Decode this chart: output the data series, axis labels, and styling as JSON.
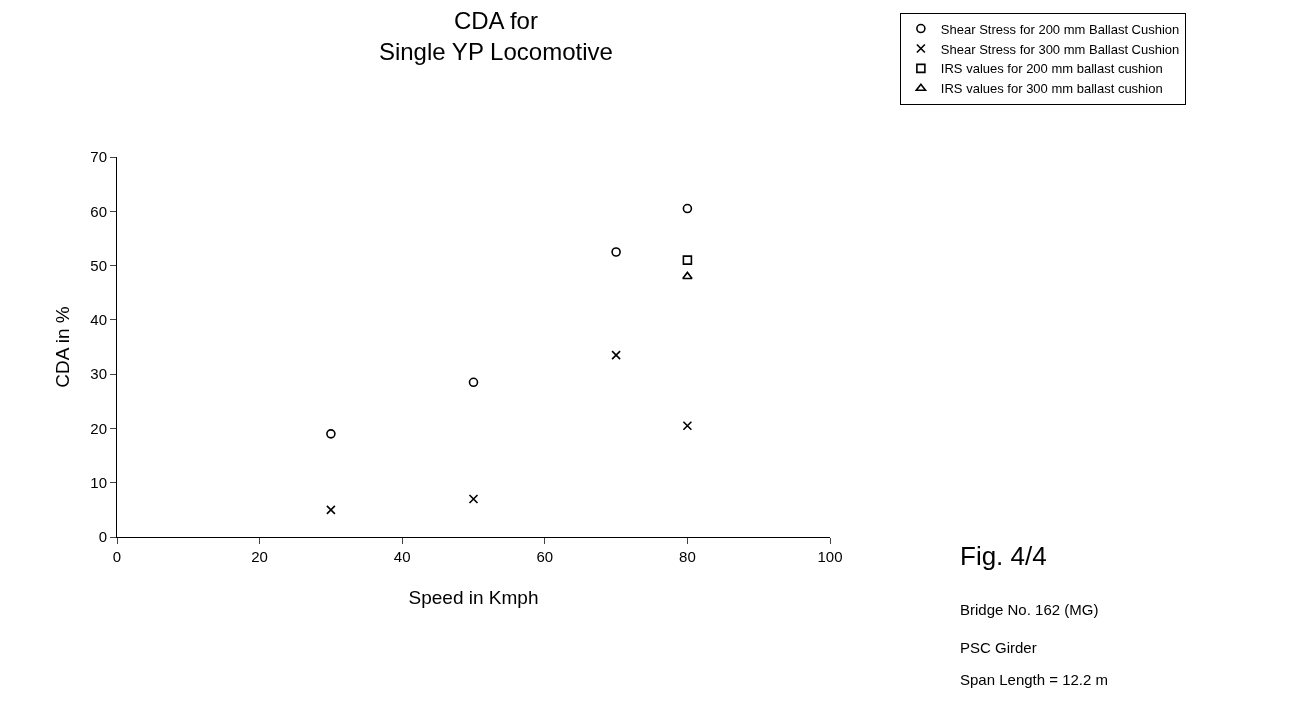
{
  "chart_data": {
    "type": "scatter",
    "title": "CDA for\nSingle YP Locomotive",
    "xlabel": "Speed in Kmph",
    "ylabel": "CDA in %",
    "xlim": [
      0,
      100
    ],
    "xticks": [
      0,
      20,
      40,
      60,
      80,
      100
    ],
    "ylim": [
      0,
      70
    ],
    "yticks": [
      0,
      10,
      20,
      30,
      40,
      50,
      60,
      70
    ],
    "grid": false,
    "legend": "top right",
    "series": [
      {
        "name": "Shear Stress for 200 mm Ballast Cushion",
        "color": "#000000",
        "marker": "circle",
        "x": [
          30,
          50,
          70,
          80
        ],
        "values": [
          19,
          28.5,
          52.5,
          60.5
        ]
      },
      {
        "name": "Shear Stress for 300 mm Ballast Cushion",
        "color": "#000000",
        "marker": "cross",
        "x": [
          30,
          50,
          70,
          80
        ],
        "values": [
          5,
          7,
          33.5,
          20.5
        ]
      },
      {
        "name": "IRS values for 200 mm ballast cushion",
        "color": "#000000",
        "marker": "square",
        "x": [
          80
        ],
        "values": [
          51
        ]
      },
      {
        "name": "IRS values for 300 mm ballast cushion",
        "color": "#000000",
        "marker": "triangle",
        "x": [
          80
        ],
        "values": [
          48
        ]
      }
    ],
    "annotations": [
      "Fig. 4/4",
      "Bridge No. 162 (MG)",
      "PSC Girder",
      "Span Length = 12.2 m"
    ]
  }
}
